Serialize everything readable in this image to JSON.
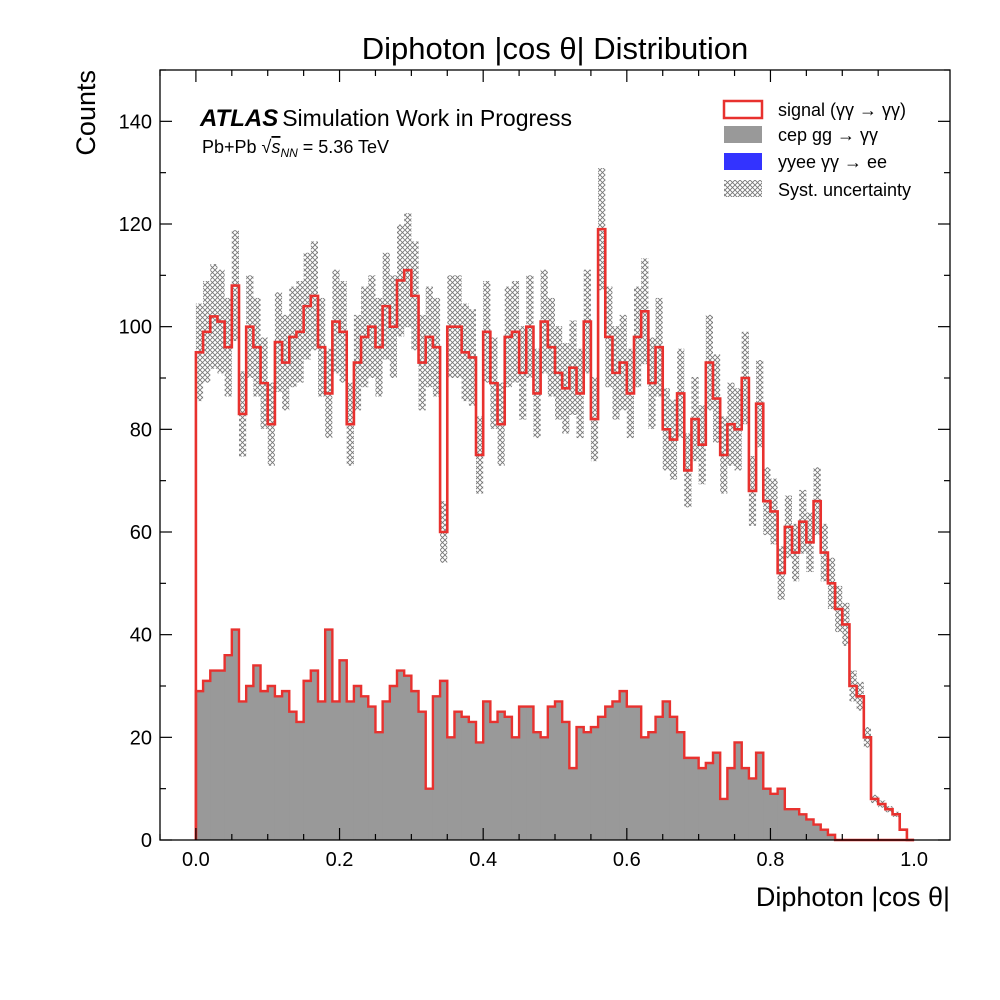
{
  "chart_data": {
    "type": "histogram",
    "title": "Diphoton |cos θ| Distribution",
    "xlabel": "Diphoton |cos θ|",
    "ylabel": "Counts",
    "xlim": [
      -0.05,
      1.05
    ],
    "ylim": [
      0,
      150
    ],
    "xticks": [
      "0.0",
      "0.2",
      "0.4",
      "0.6",
      "0.8",
      "1.0"
    ],
    "yticks": [
      "0",
      "20",
      "40",
      "60",
      "80",
      "100",
      "120",
      "140"
    ],
    "bin_edges": {
      "start": 0.0,
      "width": 0.01,
      "count": 100
    },
    "annotation": {
      "brand": "ATLAS",
      "text": "Simulation Work in Progress",
      "subtitle_prefix": "Pb+Pb ",
      "subtitle_sqrt": "√",
      "subtitle_var": "s",
      "subtitle_sub": "NN",
      "subtitle_value": " = 5.36 TeV"
    },
    "legend_position": "top-right",
    "series": [
      {
        "name": "signal (γγ → γγ)",
        "kind": "step",
        "color": "#e8312e",
        "values": [
          95,
          99,
          102,
          101,
          96,
          108,
          83,
          100,
          96,
          89,
          81,
          97,
          93,
          98,
          99,
          104,
          106,
          96,
          87,
          101,
          99,
          81,
          93,
          98,
          100,
          96,
          104,
          100,
          109,
          111,
          106,
          93,
          98,
          96,
          60,
          100,
          100,
          95,
          94,
          75,
          99,
          89,
          81,
          98,
          99,
          91,
          100,
          87,
          101,
          96,
          91,
          88,
          92,
          87,
          101,
          82,
          119,
          98,
          91,
          93,
          87,
          98,
          103,
          89,
          96,
          80,
          78,
          87,
          72,
          82,
          77,
          93,
          86,
          75,
          81,
          80,
          90,
          68,
          85,
          66,
          64,
          52,
          61,
          56,
          62,
          58,
          66,
          56,
          50,
          45,
          42,
          30,
          28,
          20,
          8,
          7,
          6,
          5,
          2,
          0
        ]
      },
      {
        "name": "cep gg → γγ",
        "kind": "filled",
        "color": "#999999",
        "values": [
          29,
          31,
          33,
          33,
          36,
          41,
          27,
          30,
          34,
          29,
          30,
          28,
          29,
          25,
          23,
          31,
          33,
          27,
          41,
          27,
          35,
          27,
          30,
          28,
          26,
          21,
          27,
          30,
          33,
          32,
          29,
          25,
          10,
          28,
          31,
          20,
          25,
          24,
          23,
          19,
          27,
          23,
          25,
          24,
          20,
          26,
          26,
          21,
          20,
          26,
          27,
          23,
          14,
          22,
          21,
          22,
          24,
          26,
          27,
          29,
          26,
          26,
          20,
          21,
          24,
          27,
          24,
          21,
          16,
          16,
          14,
          15,
          17,
          8,
          14,
          19,
          14,
          12,
          17,
          10,
          9,
          10,
          6,
          6,
          5,
          4,
          3,
          2,
          1,
          0,
          0,
          0,
          0,
          0,
          0,
          0,
          0,
          0,
          0,
          0
        ]
      },
      {
        "name": "yyee γγ → ee",
        "kind": "filled",
        "color": "#3333ff",
        "values": []
      },
      {
        "name": "Syst. uncertainty",
        "kind": "hatched-band",
        "color": "#777777",
        "relative_uncertainty": 0.1
      }
    ]
  }
}
